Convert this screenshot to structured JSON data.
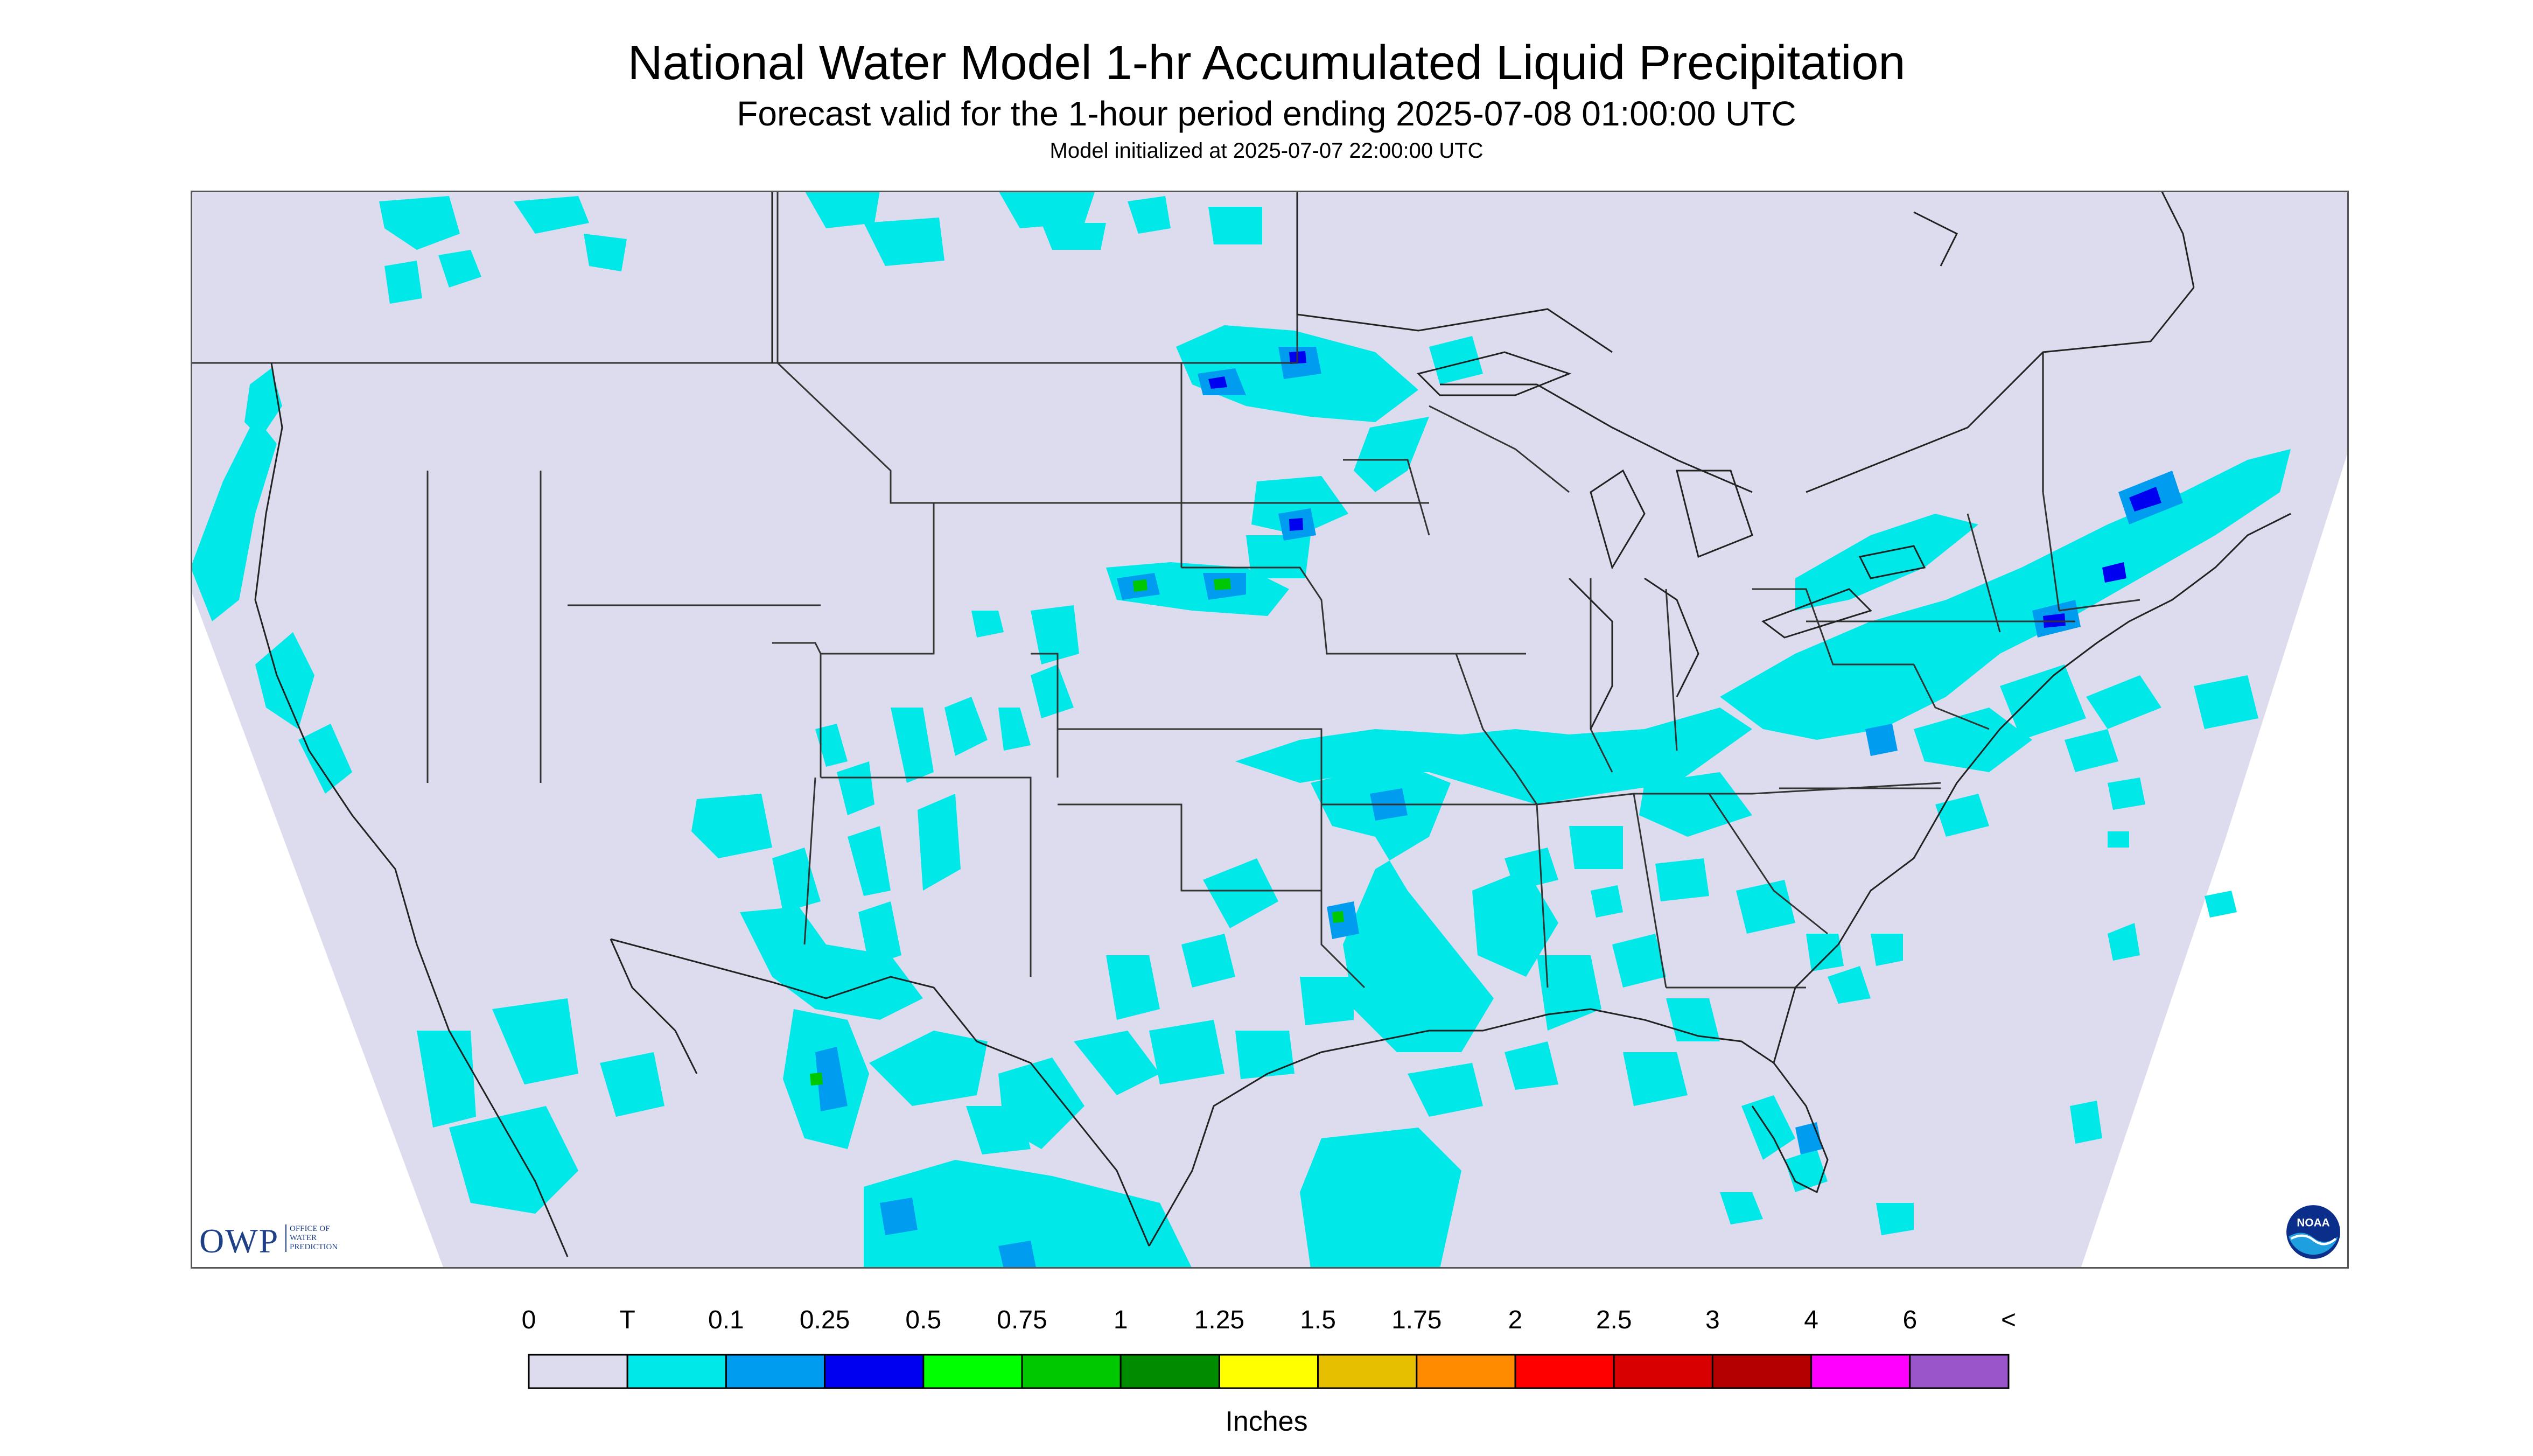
{
  "title": "National Water Model 1-hr Accumulated Liquid Precipitation",
  "subtitle": "Forecast valid for the 1-hour period ending 2025-07-08 01:00:00 UTC",
  "init_line": "Model initialized at 2025-07-07 22:00:00 UTC",
  "logos": {
    "owp_letters": "OWP",
    "owp_sub": [
      "OFFICE OF",
      "WATER",
      "PREDICTION"
    ],
    "noaa_text": "NOAA"
  },
  "legend": {
    "units": "Inches",
    "ticks": [
      "0",
      "T",
      "0.1",
      "0.25",
      "0.5",
      "0.75",
      "1",
      "1.25",
      "1.5",
      "1.75",
      "2",
      "2.5",
      "3",
      "4",
      "6",
      "<"
    ],
    "colors": [
      "#dcdcee",
      "#00e8e8",
      "#009cf0",
      "#0000f0",
      "#00ff00",
      "#00c800",
      "#008c00",
      "#ffff00",
      "#e6bf00",
      "#ff8c00",
      "#ff0000",
      "#d80000",
      "#b40000",
      "#ff00ff",
      "#9955c9"
    ]
  },
  "map": {
    "background_color": "#dcdcee",
    "outside_domain_color": "#ffffff",
    "boundary_color": "#333333",
    "precip_colors": {
      "trace": "#00e8e8",
      "light": "#009cf0",
      "moderate": "#0000f0",
      "heavy": "#00c800"
    }
  }
}
